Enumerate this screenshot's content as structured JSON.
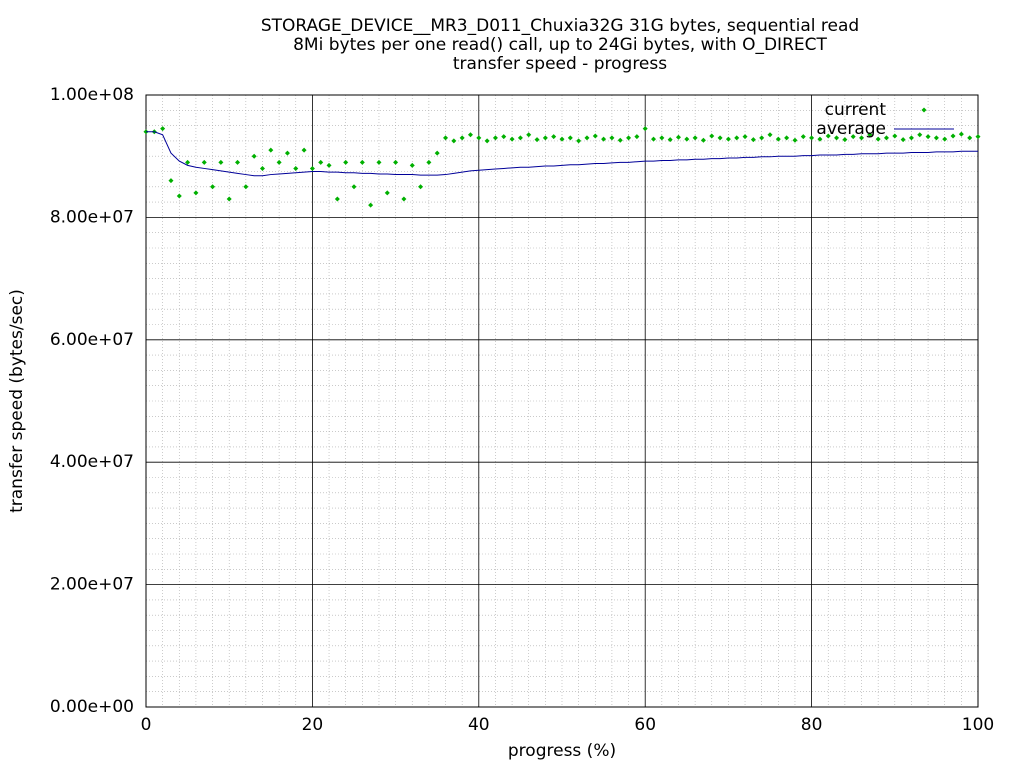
{
  "chart_data": {
    "type": "line",
    "title": [
      "STORAGE_DEVICE__MR3_D011_Chuxia32G 31G bytes, sequential read",
      "8Mi bytes per one read() call, up to 24Gi bytes, with O_DIRECT",
      "transfer speed - progress"
    ],
    "x_label": "progress (%)",
    "y_label": "transfer speed (bytes/sec)",
    "x": [
      0,
      1,
      2,
      3,
      4,
      5,
      6,
      7,
      8,
      9,
      10,
      11,
      12,
      13,
      14,
      15,
      16,
      17,
      18,
      19,
      20,
      21,
      22,
      23,
      24,
      25,
      26,
      27,
      28,
      29,
      30,
      31,
      32,
      33,
      34,
      35,
      36,
      37,
      38,
      39,
      40,
      41,
      42,
      43,
      44,
      45,
      46,
      47,
      48,
      49,
      50,
      51,
      52,
      53,
      54,
      55,
      56,
      57,
      58,
      59,
      60,
      61,
      62,
      63,
      64,
      65,
      66,
      67,
      68,
      69,
      70,
      71,
      72,
      73,
      74,
      75,
      76,
      77,
      78,
      79,
      80,
      81,
      82,
      83,
      84,
      85,
      86,
      87,
      88,
      89,
      90,
      91,
      92,
      93,
      94,
      95,
      96,
      97,
      98,
      99,
      100
    ],
    "series": [
      {
        "name": "current",
        "color": "#00b000",
        "style": "points",
        "values": [
          94000000.0,
          94000000.0,
          94500000.0,
          86000000.0,
          83500000.0,
          89000000.0,
          84000000.0,
          89000000.0,
          85000000.0,
          89000000.0,
          83000000.0,
          89000000.0,
          85000000.0,
          90000000.0,
          88000000.0,
          91000000.0,
          89000000.0,
          90500000.0,
          88000000.0,
          91000000.0,
          88000000.0,
          89000000.0,
          88500000.0,
          83000000.0,
          89000000.0,
          85000000.0,
          89000000.0,
          82000000.0,
          89000000.0,
          84000000.0,
          89000000.0,
          83000000.0,
          88500000.0,
          85000000.0,
          89000000.0,
          90500000.0,
          93000000.0,
          92500000.0,
          93000000.0,
          93500000.0,
          93000000.0,
          92500000.0,
          93000000.0,
          93200000.0,
          92800000.0,
          93000000.0,
          93500000.0,
          92700000.0,
          93000000.0,
          93200000.0,
          92800000.0,
          93000000.0,
          92500000.0,
          93000000.0,
          93300000.0,
          92800000.0,
          93000000.0,
          92600000.0,
          93000000.0,
          93200000.0,
          94500000.0,
          92800000.0,
          93000000.0,
          92700000.0,
          93100000.0,
          92800000.0,
          93000000.0,
          92600000.0,
          93300000.0,
          93000000.0,
          92800000.0,
          93000000.0,
          93200000.0,
          92700000.0,
          93000000.0,
          93500000.0,
          92800000.0,
          93000000.0,
          92600000.0,
          93200000.0,
          93000000.0,
          92800000.0,
          93300000.0,
          93000000.0,
          92700000.0,
          93200000.0,
          93000000.0,
          93500000.0,
          92800000.0,
          93000000.0,
          93300000.0,
          92700000.0,
          93000000.0,
          93500000.0,
          93200000.0,
          93000000.0,
          92800000.0,
          93300000.0,
          93600000.0,
          93000000.0,
          93200000.0
        ]
      },
      {
        "name": "average",
        "color": "#000099",
        "style": "line",
        "values": [
          94000000.0,
          94000000.0,
          93500000.0,
          90500000.0,
          89200000.0,
          88500000.0,
          88200000.0,
          88000000.0,
          87800000.0,
          87600000.0,
          87400000.0,
          87200000.0,
          87000000.0,
          86800000.0,
          86800000.0,
          87000000.0,
          87100000.0,
          87200000.0,
          87300000.0,
          87400000.0,
          87500000.0,
          87500000.0,
          87400000.0,
          87400000.0,
          87300000.0,
          87300000.0,
          87200000.0,
          87200000.0,
          87100000.0,
          87100000.0,
          87000000.0,
          87000000.0,
          87000000.0,
          86900000.0,
          86900000.0,
          86900000.0,
          87000000.0,
          87200000.0,
          87400000.0,
          87600000.0,
          87700000.0,
          87800000.0,
          87900000.0,
          88000000.0,
          88100000.0,
          88200000.0,
          88200000.0,
          88300000.0,
          88400000.0,
          88400000.0,
          88500000.0,
          88600000.0,
          88600000.0,
          88700000.0,
          88800000.0,
          88800000.0,
          88900000.0,
          89000000.0,
          89000000.0,
          89100000.0,
          89200000.0,
          89200000.0,
          89300000.0,
          89300000.0,
          89400000.0,
          89400000.0,
          89500000.0,
          89500000.0,
          89600000.0,
          89600000.0,
          89700000.0,
          89700000.0,
          89800000.0,
          89800000.0,
          89900000.0,
          89900000.0,
          90000000.0,
          90000000.0,
          90000000.0,
          90100000.0,
          90100000.0,
          90200000.0,
          90200000.0,
          90200000.0,
          90300000.0,
          90300000.0,
          90400000.0,
          90400000.0,
          90400000.0,
          90500000.0,
          90500000.0,
          90500000.0,
          90600000.0,
          90600000.0,
          90600000.0,
          90700000.0,
          90700000.0,
          90700000.0,
          90800000.0,
          90800000.0,
          90800000.0
        ]
      }
    ],
    "xlim": [
      0,
      100
    ],
    "xticks": [
      0,
      20,
      40,
      60,
      80,
      100
    ],
    "ylim": [
      0,
      100000000.0
    ],
    "yticks": [
      {
        "value": 0,
        "label": "0.00e+00"
      },
      {
        "value": 20000000.0,
        "label": "2.00e+07"
      },
      {
        "value": 40000000.0,
        "label": "4.00e+07"
      },
      {
        "value": 60000000.0,
        "label": "6.00e+07"
      },
      {
        "value": 80000000.0,
        "label": "8.00e+07"
      },
      {
        "value": 100000000.0,
        "label": "1.00e+08"
      }
    ],
    "grid": true,
    "legend": "top-right"
  }
}
